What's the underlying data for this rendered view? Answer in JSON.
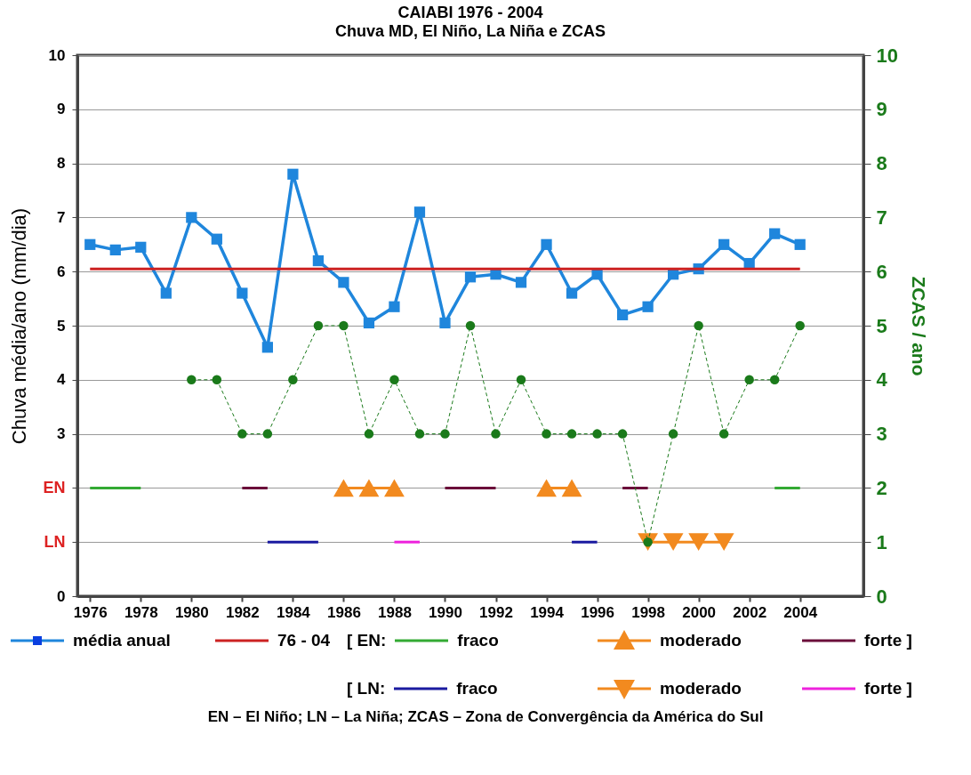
{
  "chart_data": {
    "type": "line",
    "title": "CAIABI 1976 - 2004",
    "subtitle": "Chuva MD, El Niño, La Niña e ZCAS",
    "ylabel": "Chuva média/ano (mm/dia)",
    "y2label": "ZCAS / ano",
    "x": [
      1976,
      1977,
      1978,
      1979,
      1980,
      1981,
      1982,
      1983,
      1984,
      1985,
      1986,
      1987,
      1988,
      1989,
      1990,
      1991,
      1992,
      1993,
      1994,
      1995,
      1996,
      1997,
      1998,
      1999,
      2000,
      2001,
      2002,
      2003,
      2004
    ],
    "series": [
      {
        "name": "média anual",
        "color": "#1f86dc",
        "marker": "square",
        "values": [
          6.5,
          6.4,
          6.45,
          5.6,
          7.0,
          6.6,
          5.6,
          4.6,
          7.8,
          6.2,
          5.8,
          5.05,
          5.35,
          7.1,
          5.05,
          5.9,
          5.95,
          5.8,
          6.5,
          5.6,
          5.95,
          5.2,
          5.35,
          5.95,
          6.05,
          6.5,
          6.15,
          6.7,
          6.5
        ]
      },
      {
        "name": "76 - 04",
        "color": "#cc2222",
        "x": [
          1976,
          2004
        ],
        "values": [
          6.05,
          6.05
        ]
      },
      {
        "color": "#1a7a1a",
        "axis": "y2",
        "marker": "circle",
        "line_style": "dashed",
        "x": [
          1980,
          1981,
          1982,
          1983,
          1984,
          1985,
          1986,
          1987,
          1988,
          1989,
          1990,
          1991,
          1992,
          1993,
          1994,
          1995,
          1996,
          1997,
          1998,
          1999,
          2000,
          2001,
          2002,
          2003,
          2004
        ],
        "values": [
          4,
          4,
          3,
          3,
          4,
          5,
          5,
          3,
          4,
          3,
          3,
          5,
          3,
          4,
          3,
          3,
          3,
          3,
          1,
          3,
          5,
          3,
          4,
          4,
          5
        ]
      },
      {
        "name": "fraco",
        "color": "#33aa33",
        "x": [
          1976,
          1978,
          1979,
          2003,
          2004
        ],
        "values": [
          2,
          2,
          null,
          2,
          2
        ]
      },
      {
        "name": "moderado",
        "color": "#f28a1f",
        "marker": "triangle",
        "x": [
          1986,
          1987,
          1988,
          1989,
          1994,
          1995
        ],
        "values": [
          2,
          2,
          2,
          null,
          2,
          2
        ]
      },
      {
        "name": "forte ]",
        "color": "#6b0f3a",
        "x": [
          1982,
          1983,
          1984,
          1990,
          1992,
          1993,
          1997,
          1998
        ],
        "values": [
          2,
          2,
          null,
          2,
          2,
          null,
          2,
          2
        ]
      },
      {
        "name": "fraco",
        "color": "#1a1aa0",
        "x": [
          1983,
          1985,
          1986,
          1995,
          1996
        ],
        "values": [
          1,
          1,
          null,
          1,
          1
        ]
      },
      {
        "name": "moderado",
        "color": "#f28a1f",
        "marker": "triangle-down",
        "x": [
          1998,
          1999,
          2000,
          2001
        ],
        "values": [
          1,
          1,
          1,
          1
        ]
      },
      {
        "name": "forte ]",
        "color": "#ee22dd",
        "x": [
          1988,
          1989
        ],
        "values": [
          1,
          1
        ]
      }
    ],
    "xlim": [
      1975.5,
      2006.5
    ],
    "xticks": [
      1976,
      1978,
      1980,
      1982,
      1984,
      1986,
      1988,
      1990,
      1992,
      1994,
      1996,
      1998,
      2000,
      2002,
      2004
    ],
    "ylim": [
      0,
      10
    ],
    "yticks": [
      0,
      {
        "value": 1,
        "label": "LN"
      },
      {
        "value": 2,
        "label": "EN"
      },
      3,
      4,
      5,
      6,
      7,
      8,
      9,
      10
    ],
    "y2lim": [
      0,
      10
    ],
    "y2ticks": [
      0,
      1,
      2,
      3,
      4,
      5,
      6,
      7,
      8,
      9,
      10
    ],
    "grid": "y",
    "legend": "bottom",
    "annotations": [
      "[ EN:",
      "[ LN:",
      "EN – El Niño; LN – La Niña; ZCAS – Zona de Convergência da América do Sul"
    ]
  }
}
